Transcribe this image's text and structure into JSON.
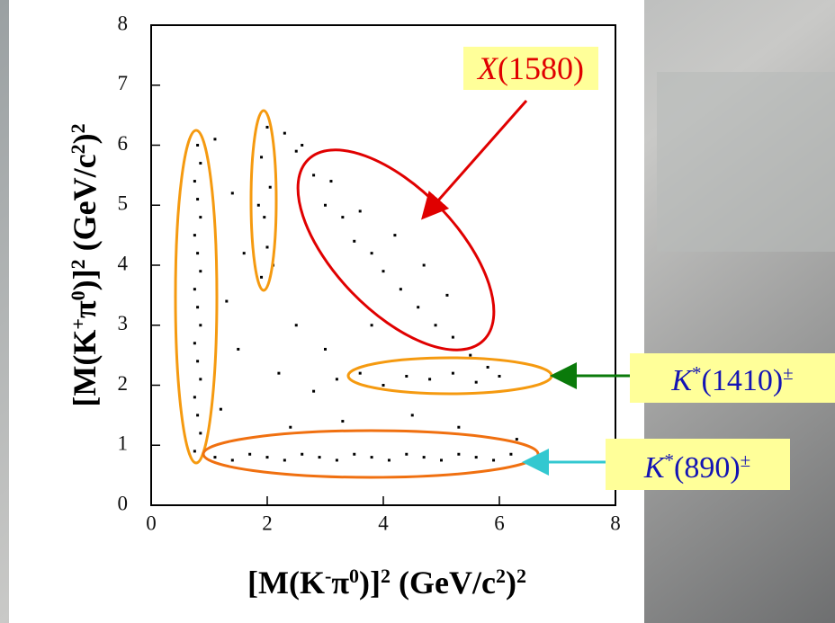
{
  "chart_data": {
    "type": "scatter",
    "x_label": [
      {
        "text": "[M(K"
      },
      {
        "text": "-",
        "sup": true
      },
      {
        "text": "π"
      },
      {
        "text": "0",
        "sup": true
      },
      {
        "text": ")]"
      },
      {
        "text": "2",
        "sup": true
      },
      {
        "text": " (GeV/c"
      },
      {
        "text": "2",
        "sup": true
      },
      {
        "text": ")"
      },
      {
        "text": "2",
        "sup": true
      }
    ],
    "y_label": [
      {
        "text": "[M(K"
      },
      {
        "text": "+",
        "sup": true
      },
      {
        "text": "π"
      },
      {
        "text": "0",
        "sup": true
      },
      {
        "text": ")]"
      },
      {
        "text": "2",
        "sup": true
      },
      {
        "text": " (GeV/c"
      },
      {
        "text": "2",
        "sup": true
      },
      {
        "text": ")"
      },
      {
        "text": "2",
        "sup": true
      }
    ],
    "xlim": [
      0,
      8
    ],
    "ylim": [
      0,
      8
    ],
    "xticks": [
      0,
      2,
      4,
      6,
      8
    ],
    "yticks": [
      0,
      1,
      2,
      3,
      4,
      5,
      6,
      7,
      8
    ],
    "color": "#000000",
    "x": [
      0.75,
      0.85,
      0.8,
      0.75,
      0.85,
      0.8,
      0.75,
      0.85,
      0.8,
      0.75,
      0.85,
      0.8,
      0.75,
      0.85,
      0.8,
      0.75,
      0.85,
      0.8,
      1.1,
      1.4,
      1.7,
      2.0,
      2.3,
      2.6,
      2.9,
      3.2,
      3.5,
      3.8,
      4.1,
      4.4,
      4.7,
      5.0,
      5.3,
      5.6,
      5.9,
      6.2,
      1.9,
      2.0,
      1.95,
      2.05,
      1.9,
      2.0,
      2.1,
      1.85,
      2.5,
      2.8,
      3.0,
      3.3,
      3.5,
      3.8,
      4.0,
      4.3,
      4.6,
      4.9,
      5.2,
      5.5,
      3.1,
      3.6,
      4.2,
      4.7,
      5.1,
      2.3,
      2.6,
      5.8,
      3.2,
      3.6,
      4.0,
      4.4,
      4.8,
      5.2,
      5.6,
      6.0,
      1.2,
      1.5,
      1.3,
      2.4,
      2.8,
      3.3,
      1.6,
      2.5,
      3.0,
      2.2,
      1.4,
      3.8,
      4.5,
      5.3,
      1.1,
      6.3
    ],
    "values": [
      0.9,
      1.2,
      1.5,
      1.8,
      2.1,
      2.4,
      2.7,
      3.0,
      3.3,
      3.6,
      3.9,
      4.2,
      4.5,
      4.8,
      5.1,
      5.4,
      5.7,
      6.0,
      0.8,
      0.75,
      0.85,
      0.8,
      0.75,
      0.85,
      0.8,
      0.75,
      0.85,
      0.8,
      0.75,
      0.85,
      0.8,
      0.75,
      0.85,
      0.8,
      0.75,
      0.85,
      3.8,
      4.3,
      4.8,
      5.3,
      5.8,
      6.3,
      4.0,
      5.0,
      5.9,
      5.5,
      5.0,
      4.8,
      4.4,
      4.2,
      3.9,
      3.6,
      3.3,
      3.0,
      2.8,
      2.5,
      5.4,
      4.9,
      4.5,
      4.0,
      3.5,
      6.2,
      6.0,
      2.3,
      2.1,
      2.2,
      2.0,
      2.15,
      2.1,
      2.2,
      2.05,
      2.15,
      1.6,
      2.6,
      3.4,
      1.3,
      1.9,
      1.4,
      4.2,
      3.0,
      2.6,
      2.2,
      5.2,
      3.0,
      1.5,
      1.3,
      6.1,
      1.1
    ],
    "annotations": [
      {
        "color": "#e00000",
        "parts": [
          {
            "text": "X",
            "italic": true
          },
          {
            "text": "(1580)"
          }
        ]
      },
      {
        "color": "#1414b4",
        "parts": [
          {
            "text": "K",
            "italic": true
          },
          {
            "text": "*",
            "sup": true
          },
          {
            "text": "(1410)"
          },
          {
            "text": "±",
            "sup": true
          }
        ]
      },
      {
        "color": "#1414b4",
        "parts": [
          {
            "text": "K",
            "italic": true
          },
          {
            "text": "*",
            "sup": true
          },
          {
            "text": "(890)"
          },
          {
            "text": "±",
            "sup": true
          }
        ]
      }
    ]
  }
}
